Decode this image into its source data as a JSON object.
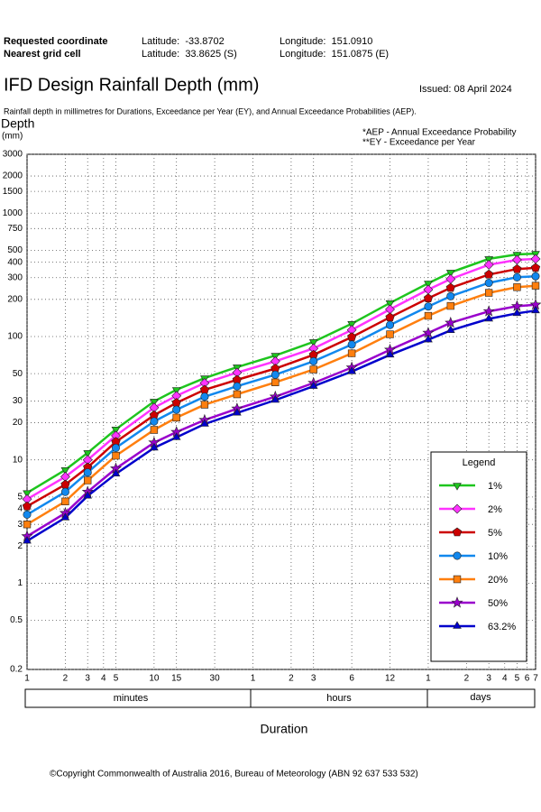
{
  "header": {
    "requested_label": "Requested coordinate",
    "requested_lat": "Latitude:  -33.8702",
    "requested_lon": "Longitude:  151.0910",
    "nearest_label": "Nearest grid cell",
    "nearest_lat": "Latitude:  33.8625 (S)",
    "nearest_lon": "Longitude:  151.0875 (E)",
    "title": "IFD Design Rainfall Depth (mm)",
    "issued": "Issued: 08 April 2024",
    "subtitle": "Rainfall depth in millimetres for Durations, Exceedance per Year (EY), and Annual Exceedance Probabilities (AEP)."
  },
  "chart_data": {
    "type": "line",
    "y_label": "Depth",
    "y_unit": "(mm)",
    "notes": [
      "*AEP - Annual Exceedance Probability",
      "**EY - Exceedance per Year"
    ],
    "x_label": "Duration",
    "duration_units": [
      "minutes",
      "hours",
      "days"
    ],
    "legend_title": "Legend",
    "legend_position": "lower right",
    "log_x": true,
    "log_y": true,
    "grid": true,
    "xlim": [
      1,
      10080
    ],
    "ylim": [
      0.2,
      3000
    ],
    "xticks": [
      1,
      2,
      3,
      4,
      5,
      10,
      15,
      30,
      {
        "value": 60,
        "label": "1"
      },
      {
        "value": 120,
        "label": "2"
      },
      {
        "value": 180,
        "label": "3"
      },
      {
        "value": 360,
        "label": "6"
      },
      {
        "value": 720,
        "label": "12"
      },
      {
        "value": 1440,
        "label": "1"
      },
      {
        "value": 2880,
        "label": "2"
      },
      {
        "value": 4320,
        "label": "3"
      },
      {
        "value": 5760,
        "label": "4"
      },
      {
        "value": 7200,
        "label": "5"
      },
      {
        "value": 8640,
        "label": "6"
      },
      {
        "value": 10080,
        "label": "7"
      }
    ],
    "yticks": [
      0.2,
      0.5,
      1,
      2,
      3,
      4,
      5,
      10,
      20,
      30,
      50,
      100,
      200,
      300,
      400,
      500,
      750,
      1000,
      1500,
      2000,
      3000
    ],
    "x": [
      1,
      2,
      3,
      5,
      10,
      15,
      25,
      45,
      90,
      180,
      360,
      720,
      1440,
      2160,
      4320,
      7200,
      10080
    ],
    "series": [
      {
        "name": "1%",
        "color": "#1ec51e",
        "marker": "triangle-down",
        "values": [
          5.4,
          8.3,
          11.4,
          17.7,
          29.8,
          37,
          46,
          56.5,
          70,
          90.5,
          127,
          187,
          270,
          331,
          426,
          463,
          470
        ]
      },
      {
        "name": "2%",
        "color": "#ff33ff",
        "marker": "diamond",
        "values": [
          4.8,
          7.3,
          10,
          15.7,
          26.5,
          33,
          42,
          51,
          63,
          80,
          113,
          166,
          240,
          292,
          382,
          418,
          425
        ]
      },
      {
        "name": "5%",
        "color": "#cc0000",
        "marker": "pentagon",
        "values": [
          4.2,
          6.3,
          8.7,
          14,
          23,
          29,
          37,
          44.5,
          55,
          71,
          99,
          143,
          204,
          248,
          318,
          352,
          360
        ]
      },
      {
        "name": "10%",
        "color": "#1188ee",
        "marker": "circle",
        "values": [
          3.6,
          5.5,
          7.9,
          12.5,
          20.5,
          25.5,
          32.5,
          39.5,
          49,
          63,
          86,
          124,
          175,
          212,
          272,
          302,
          308
        ]
      },
      {
        "name": "20%",
        "color": "#ff7f0e",
        "marker": "square",
        "values": [
          3,
          4.6,
          6.8,
          10.8,
          17.5,
          22,
          28,
          34,
          42.5,
          54,
          73,
          104,
          147,
          177,
          226,
          251,
          258
        ]
      },
      {
        "name": "50%",
        "color": "#9900cc",
        "marker": "star",
        "values": [
          2.4,
          3.7,
          5.5,
          8.5,
          13.8,
          16.8,
          21,
          26,
          32.5,
          42,
          56,
          78,
          107,
          129,
          160,
          176,
          181
        ]
      },
      {
        "name": "63.2%",
        "color": "#0000cc",
        "marker": "triangle-up",
        "values": [
          2.2,
          3.4,
          5.1,
          7.7,
          12.5,
          15.2,
          19.5,
          24,
          30.5,
          39.5,
          52,
          71,
          94,
          112,
          139,
          154,
          162
        ]
      }
    ]
  },
  "footer": {
    "copyright": "©Copyright Commonwealth of Australia 2016, Bureau of Meteorology (ABN 92 637 533 532)"
  }
}
